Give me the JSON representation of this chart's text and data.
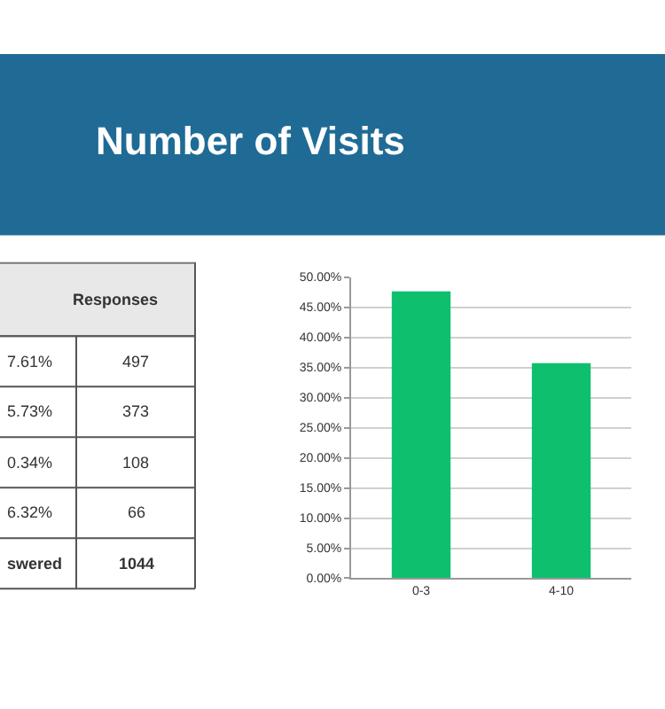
{
  "chart_data": [
    {
      "type": "other",
      "annotations": [
        "Responses",
        "7.61%",
        "497",
        "5.73%",
        "373",
        "0.34%",
        "108",
        "6.32%",
        "66",
        "swered",
        "1044"
      ]
    },
    {
      "type": "bar",
      "title": "Number of Visits",
      "categories": [
        "0-3",
        "4-10"
      ],
      "values": [
        47.6,
        35.7
      ],
      "color": "#0ec06e",
      "ylim": [
        0,
        50
      ],
      "yticks": [
        {
          "value": 0,
          "label": "0.00%"
        },
        {
          "value": 5,
          "label": "5.00%"
        },
        {
          "value": 10,
          "label": "10.00%"
        },
        {
          "value": 15,
          "label": "15.00%"
        },
        {
          "value": 20,
          "label": "20.00%"
        },
        {
          "value": 25,
          "label": "25.00%"
        },
        {
          "value": 30,
          "label": "30.00%"
        },
        {
          "value": 35,
          "label": "35.00%"
        },
        {
          "value": 40,
          "label": "40.00%"
        },
        {
          "value": 45,
          "label": "45.00%"
        },
        {
          "value": 50,
          "label": "50.00%"
        }
      ],
      "grid": "y"
    }
  ]
}
